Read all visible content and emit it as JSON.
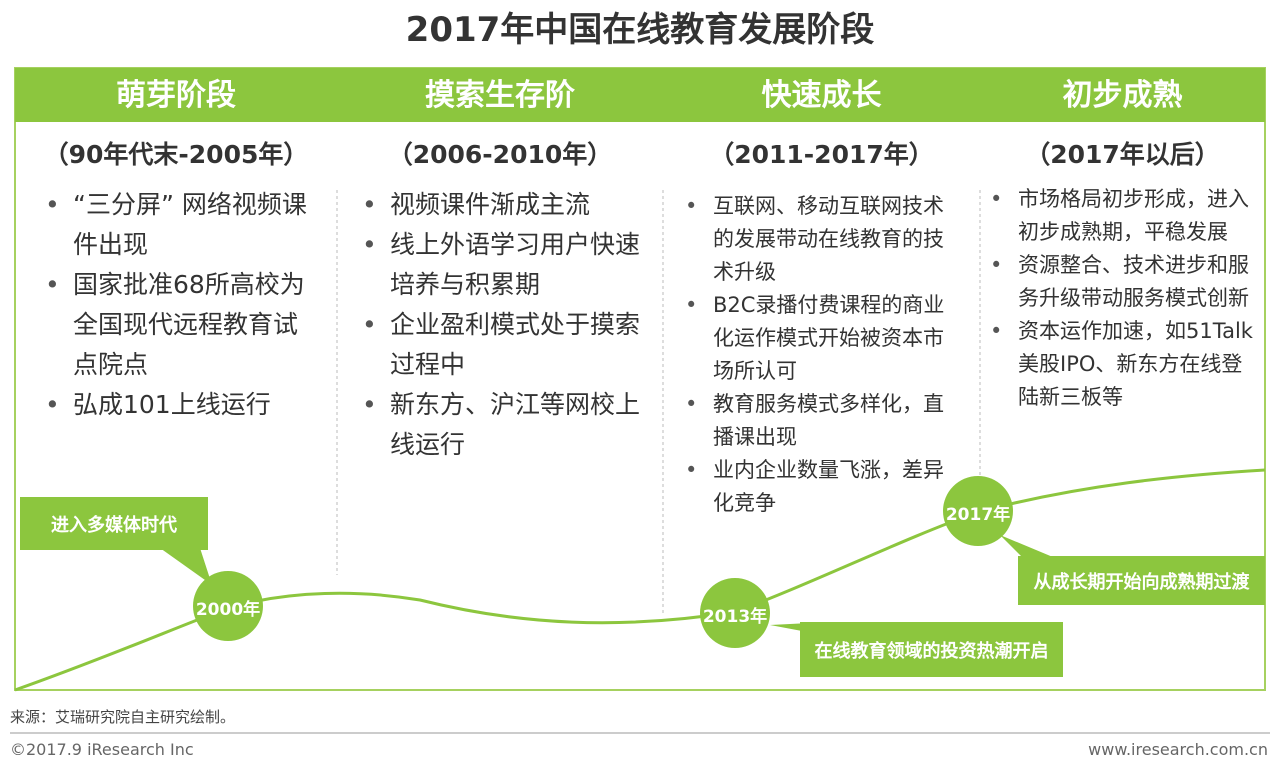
{
  "title": "2017年中国在线教育发展阶段",
  "stages": [
    {
      "name": "萌芽阶段",
      "period": "（90年代末-2005年）",
      "items": [
        "“三分屏” 网络视频课件出现",
        "国家批准68所高校为全国现代远程教育试点院点",
        "弘成101上线运行"
      ]
    },
    {
      "name": "摸索生存阶",
      "period": "（2006-2010年）",
      "items": [
        "视频课件渐成主流",
        "线上外语学习用户快速培养与积累期",
        "企业盈利模式处于摸索过程中",
        "新东方、沪江等网校上线运行"
      ]
    },
    {
      "name": "快速成长",
      "period": "（2011-2017年）",
      "items": [
        "互联网、移动互联网技术的发展带动在线教育的技术升级",
        "B2C录播付费课程的商业化运作模式开始被资本市场所认可",
        "教育服务模式多样化，直播课出现",
        "业内企业数量飞涨，差异化竞争"
      ]
    },
    {
      "name": "初步成熟",
      "period": "（2017年以后）",
      "items": [
        "市场格局初步形成，进入初步成熟期，平稳发展",
        "资源整合、技术进步和服务升级带动服务模式创新",
        "资本运作加速，如51Talk美股IPO、新东方在线登陆新三板等"
      ]
    }
  ],
  "milestones": [
    {
      "label": "2000年",
      "note": "进入多媒体时代"
    },
    {
      "label": "2013年",
      "note": "在线教育领域的投资热潮开启"
    },
    {
      "label": "2017年",
      "note": "从成长期开始向成熟期过渡"
    }
  ],
  "source": "来源：艾瑞研究院自主研究绘制。",
  "copyright": "©2017.9 iResearch Inc",
  "website": "www.iresearch.com.cn"
}
